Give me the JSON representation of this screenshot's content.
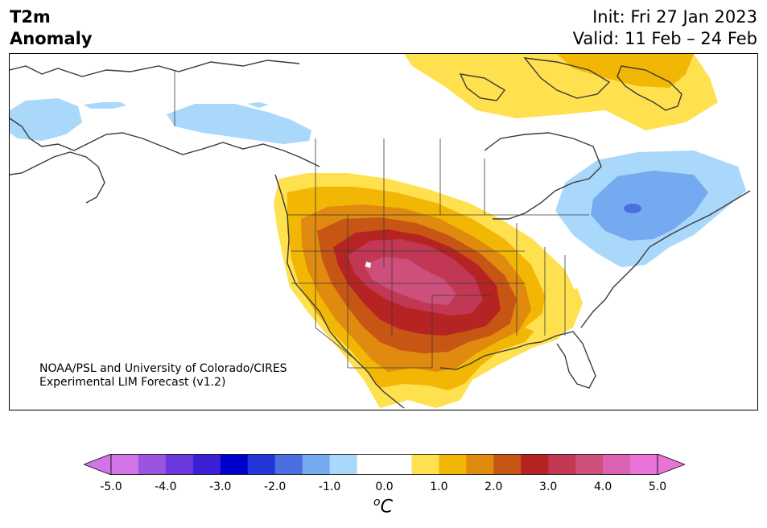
{
  "header": {
    "title_line1": "T2m",
    "title_line2": "Anomaly",
    "init": "Init: Fri 27 Jan 2023",
    "valid": "Valid: 11 Feb – 24 Feb"
  },
  "credit": {
    "line1": "NOAA/PSL and University of Colorado/CIRES",
    "line2": "Experimental LIM Forecast (v1.2)"
  },
  "colorbar": {
    "unit_super": "o",
    "unit_main": "C",
    "tick_labels": [
      "-5.0",
      "-4.0",
      "-3.0",
      "-2.0",
      "-1.0",
      "0.0",
      "1.0",
      "2.0",
      "3.0",
      "4.0",
      "5.0"
    ],
    "colors": [
      "#d274e8",
      "#9a54e0",
      "#6a38dc",
      "#3b1fd4",
      "#0000cc",
      "#2436d8",
      "#4a6fe0",
      "#76aaf0",
      "#a9d8fa",
      "#ffffff",
      "#ffffff",
      "#ffe04f",
      "#f2b705",
      "#e08a0f",
      "#c75514",
      "#b52423",
      "#c23754",
      "#cc4f7c",
      "#da62b0",
      "#e874d8"
    ],
    "under_color": "#d274e8",
    "over_color": "#e874d8"
  }
}
